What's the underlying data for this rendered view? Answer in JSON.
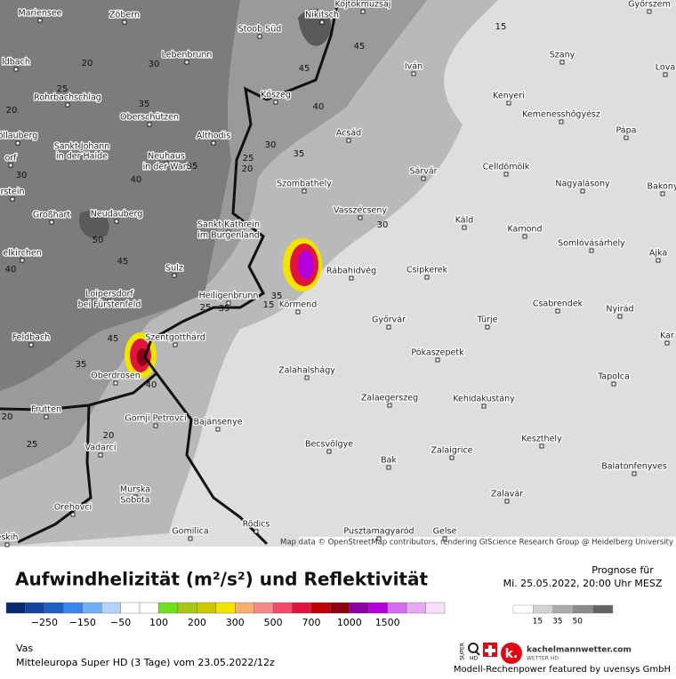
{
  "map": {
    "places": [
      "Mariensee",
      "Zöbern",
      "Stoob Süd",
      "Nikitsch",
      "Kojtokmuzsaj",
      "Győrszem",
      "Lebenbrunn",
      "Iván",
      "Szany",
      "Lova",
      "ldbach",
      "Kőszeg",
      "Kenyeri",
      "Rohrbachschlag",
      "Oberschützen",
      "Kemenesshőgyész",
      "Acsád",
      "Pápa",
      "öllauberg",
      "Althodis",
      "Sankt Johann",
      "in der Haide",
      "Neuhaus",
      "in der Wart",
      "Sárvár",
      "Celldömölk",
      "Szombathely",
      "Nagyalásony",
      "Bakony",
      "orf",
      "rstein",
      "Großhart",
      "Neudauberg",
      "Vasszécseny",
      "Káld",
      "Sankt Kathrein",
      "im Burgenland",
      "Kamond",
      "Somlóvásárhely",
      "elkirchen",
      "Sulz",
      "Rábahidvég",
      "Csipkerek",
      "Ajka",
      "Loipersdorf",
      "bei Fürstenfeld",
      "Heiligenbrunn",
      "Körmend",
      "Csabrendek",
      "Nyirád",
      "Győrvár",
      "Türje",
      "Feldbach",
      "Szentgotthárd",
      "Kar",
      "Pókaszepetk",
      "Zalahalshágy",
      "Oberdrosen",
      "Tapolca",
      "Zalaegerszeg",
      "Kehidakustány",
      "Frutten",
      "Gornji Petrovci",
      "Bajánsenye",
      "Keszthely",
      "Vadarci",
      "Becsvölgye",
      "Zalaigrice",
      "Bak",
      "Balatonfenyves",
      "Zalavár",
      "Murska",
      "Sobota",
      "Orehovci",
      "Pusztamagyaród",
      "Gelse",
      "Rödics",
      "Gomilica",
      "eskih"
    ],
    "contour_labels": [
      20,
      30,
      25,
      20,
      35,
      45,
      15,
      45,
      40,
      30,
      35,
      25,
      20,
      35,
      40,
      30,
      50,
      45,
      40,
      30,
      35,
      25,
      35,
      15,
      45,
      35,
      40,
      20,
      20,
      25
    ],
    "attribution": "Map data © OpenStreetMap contributors, rendering GIScience Research Group @ Heidelberg University"
  },
  "footer": {
    "title": "Aufwindhelizität (m²/s²) und Reflektivität",
    "forecast_label": "Prognose für",
    "forecast_time": "Mi. 25.05.2022, 20:00 Uhr MESZ",
    "colorbar": {
      "colors": [
        "#0a2a6e",
        "#12439c",
        "#1e5fc4",
        "#3a86ec",
        "#74aef6",
        "#b2d4fb",
        "#ffffff",
        "#ffffff",
        "#6ee01e",
        "#a6c814",
        "#cdc800",
        "#f2e400",
        "#f5b070",
        "#f28a8a",
        "#f24a6a",
        "#e0143c",
        "#c00000",
        "#8c0014",
        "#8a00a0",
        "#b400dc",
        "#d46cf0",
        "#e8a8f2",
        "#f8e0f8"
      ],
      "labels": [
        "−250",
        "−150",
        "−50",
        "100",
        "200",
        "300",
        "500",
        "700",
        "1000",
        "1500"
      ]
    },
    "graybar": {
      "colors": [
        "#ffffff",
        "#d2d2d2",
        "#aaaaaa",
        "#8a8a8a",
        "#646464"
      ],
      "labels": [
        "15",
        "35",
        "50"
      ]
    },
    "region": "Vas",
    "model": "Mitteleuropa Super HD (3 Tage) vom 23.05.2022/12z",
    "logo": {
      "super": "SUPER",
      "hd": "HD",
      "k": "k.",
      "brand": "kachelmannwetter.com",
      "brand_sub": "WETTER HD"
    },
    "credit": "Modell-Rechenpower featured by uvensys GmbH"
  }
}
